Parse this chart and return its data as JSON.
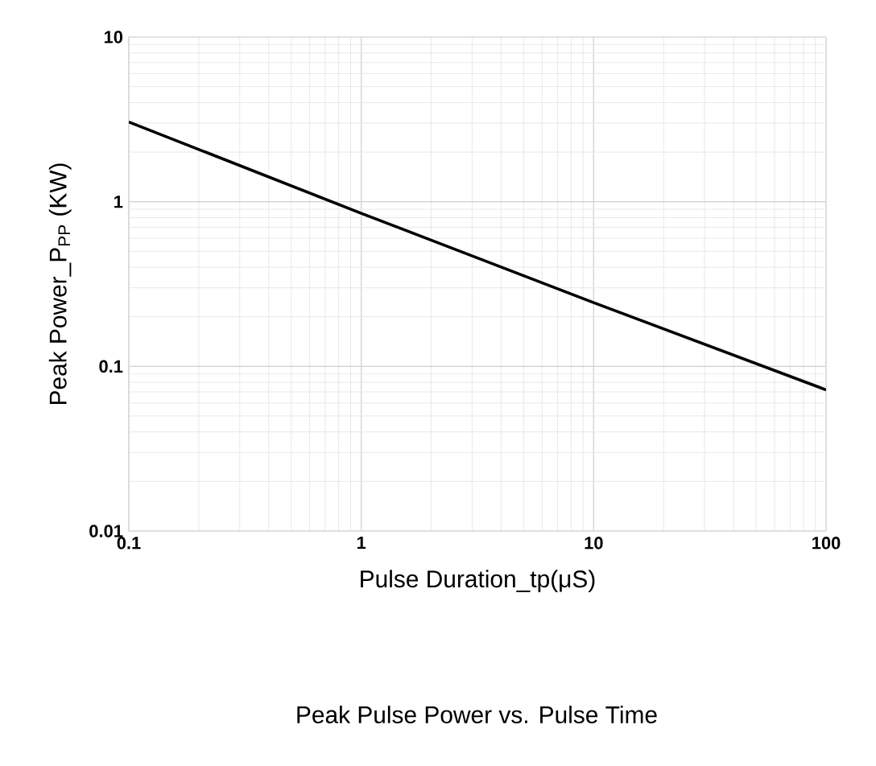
{
  "chart_data": {
    "type": "line",
    "title": "Peak Pulse Power vs. Pulse Time",
    "xlabel": "Pulse Duration_tp(μS)",
    "ylabel": "Peak Power_P$_{PP}$  (KW)",
    "log": "xy",
    "grid": true,
    "xlim": [
      0.1,
      100
    ],
    "ylim": [
      0.01,
      10
    ],
    "xticks": [
      0.1,
      1,
      10,
      100
    ],
    "yticks": [
      0.01,
      0.1,
      1,
      10
    ],
    "x": [
      0.1,
      1,
      10,
      100
    ],
    "series": [
      {
        "color": "#000000",
        "values": [
          3.05,
          0.85,
          0.244,
          0.072
        ]
      }
    ]
  }
}
